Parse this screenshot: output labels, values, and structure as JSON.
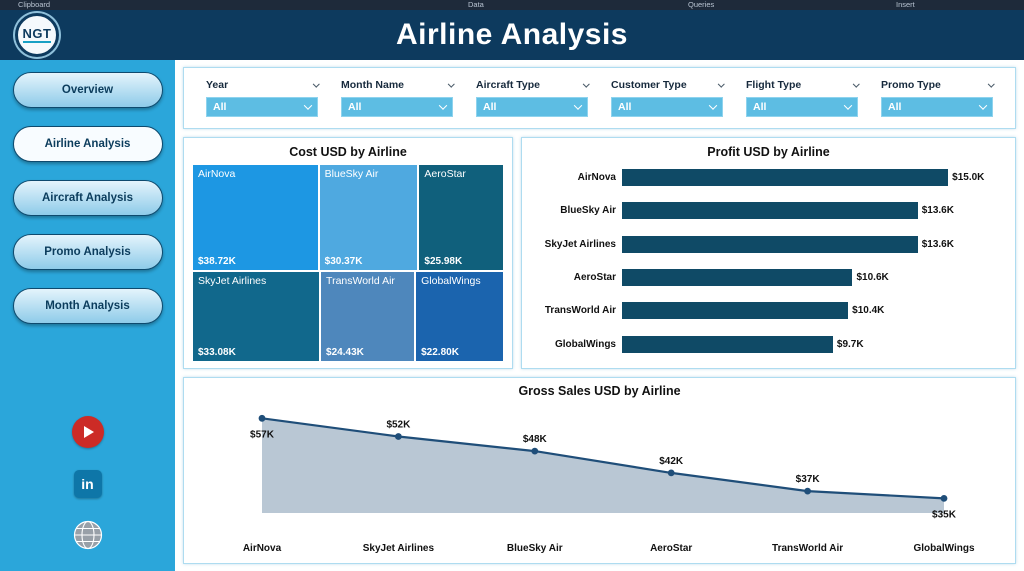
{
  "ribbon": {
    "groups": [
      "Clipboard",
      "Data",
      "Queries",
      "Insert"
    ]
  },
  "header": {
    "title": "Airline Analysis",
    "logo_text": "NGT"
  },
  "sidebar": {
    "items": [
      {
        "label": "Overview",
        "active": false
      },
      {
        "label": "Airline Analysis",
        "active": true
      },
      {
        "label": "Aircraft Analysis",
        "active": false
      },
      {
        "label": "Promo Analysis",
        "active": false
      },
      {
        "label": "Month Analysis",
        "active": false
      }
    ],
    "social": [
      {
        "name": "youtube",
        "color": "#cc2b26"
      },
      {
        "name": "linkedin",
        "color": "#0e76a8",
        "glyph": "in"
      },
      {
        "name": "website",
        "color": "#98a0a8"
      }
    ]
  },
  "filters": [
    {
      "label": "Year",
      "value": "All"
    },
    {
      "label": "Month Name",
      "value": "All"
    },
    {
      "label": "Aircraft Type",
      "value": "All"
    },
    {
      "label": "Customer Type",
      "value": "All"
    },
    {
      "label": "Flight Type",
      "value": "All"
    },
    {
      "label": "Promo Type",
      "value": "All"
    }
  ],
  "chart_data": [
    {
      "type": "treemap",
      "title": "Cost USD by Airline",
      "items": [
        {
          "label": "AirNova",
          "value": 38.72,
          "value_label": "$38.72K",
          "color": "#1d97e3"
        },
        {
          "label": "BlueSky Air",
          "value": 30.37,
          "value_label": "$30.37K",
          "color": "#4fa9e0"
        },
        {
          "label": "AeroStar",
          "value": 25.98,
          "value_label": "$25.98K",
          "color": "#10607c"
        },
        {
          "label": "SkyJet Airlines",
          "value": 33.08,
          "value_label": "$33.08K",
          "color": "#11688c"
        },
        {
          "label": "TransWorld Air",
          "value": 24.43,
          "value_label": "$24.43K",
          "color": "#4e87bc"
        },
        {
          "label": "GlobalWings",
          "value": 22.8,
          "value_label": "$22.80K",
          "color": "#1b64ae"
        }
      ]
    },
    {
      "type": "bar",
      "title": "Profit USD by Airline",
      "categories": [
        "AirNova",
        "BlueSky Air",
        "SkyJet Airlines",
        "AeroStar",
        "TransWorld Air",
        "GlobalWings"
      ],
      "values": [
        15.0,
        13.6,
        13.6,
        10.6,
        10.4,
        9.7
      ],
      "labels": [
        "$15.0K",
        "$13.6K",
        "$13.6K",
        "$10.6K",
        "$10.4K",
        "$9.7K"
      ],
      "bar_color": "#0f4a66",
      "xlim": [
        0,
        15.5
      ],
      "orientation": "horizontal",
      "grid": false
    },
    {
      "type": "area",
      "title": "Gross Sales USD by Airline",
      "categories": [
        "AirNova",
        "SkyJet Airlines",
        "BlueSky Air",
        "AeroStar",
        "TransWorld Air",
        "GlobalWings"
      ],
      "values": [
        57,
        52,
        48,
        42,
        37,
        35
      ],
      "labels": [
        "$57K",
        "$52K",
        "$48K",
        "$42K",
        "$37K",
        "$35K"
      ],
      "line_color": "#1f4e79",
      "fill_color": "#b9c7d4",
      "ylim": [
        31,
        59
      ],
      "grid": false
    }
  ]
}
